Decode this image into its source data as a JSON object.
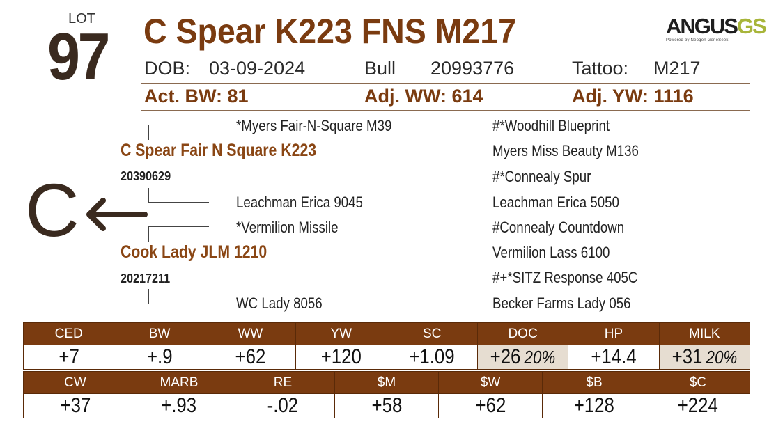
{
  "lot": {
    "label": "LOT",
    "number": "97"
  },
  "title": "C Spear K223 FNS M217",
  "logo": {
    "main": "ANGUS",
    "accent": "GS",
    "tagline": "Powered by Neogen GeneSeek"
  },
  "info": {
    "dob_label": "DOB:",
    "dob_value": "03-09-2024",
    "sex": "Bull",
    "reg": "20993776",
    "tattoo_label": "Tattoo:",
    "tattoo_value": "M217"
  },
  "weights": {
    "bw_label": "Act. BW:",
    "bw_value": "81",
    "ww_label": "Adj. WW:",
    "ww_value": "614",
    "yw_label": "Adj. YW:",
    "yw_value": "1116"
  },
  "pedigree": {
    "sire": "C Spear Fair N Square K223",
    "sire_reg": "20390629",
    "sire_sire": "*Myers Fair-N-Square M39",
    "sire_dam": "Leachman Erica 9045",
    "dam": "Cook Lady JLM 1210",
    "dam_reg": "20217211",
    "dam_sire": "*Vermilion Missile",
    "dam_dam": "WC Lady 8056",
    "ancestors": [
      "#*Woodhill Blueprint",
      "Myers Miss Beauty M136",
      "#*Connealy Spur",
      "Leachman Erica 5050",
      "#Connealy Countdown",
      "Vermilion Lass 6100",
      "#+*SITZ Response 405C",
      "Becker Farms Lady 056"
    ]
  },
  "side_mark": {
    "letter": "C"
  },
  "epds_row1": [
    {
      "label": "CED",
      "value": "+7"
    },
    {
      "label": "BW",
      "value": "+.9"
    },
    {
      "label": "WW",
      "value": "+62"
    },
    {
      "label": "YW",
      "value": "+120"
    },
    {
      "label": "SC",
      "value": "+1.09"
    },
    {
      "label": "DOC",
      "value": "+26",
      "pct": "20%"
    },
    {
      "label": "HP",
      "value": "+14.4"
    },
    {
      "label": "MILK",
      "value": "+31",
      "pct": "20%"
    }
  ],
  "epds_row2": [
    {
      "label": "CW",
      "value": "+37"
    },
    {
      "label": "MARB",
      "value": "+.93"
    },
    {
      "label": "RE",
      "value": "-.02"
    },
    {
      "label": "$M",
      "value": "+58"
    },
    {
      "label": "$W",
      "value": "+62"
    },
    {
      "label": "$B",
      "value": "+128"
    },
    {
      "label": "$C",
      "value": "+224"
    }
  ],
  "colors": {
    "brand": "#7a3b10",
    "dark": "#3a2a1f",
    "highlight": "#e6ddd1",
    "logo_accent": "#a8b53a"
  }
}
